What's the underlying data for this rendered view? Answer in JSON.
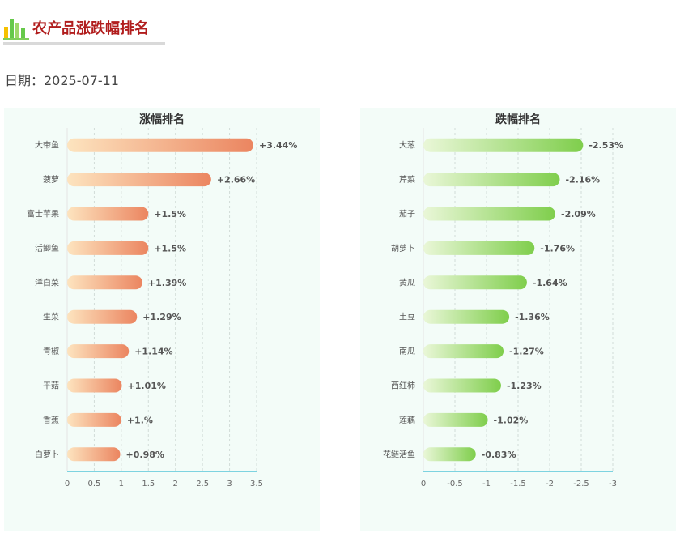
{
  "page": {
    "title": "农产品涨跌幅排名",
    "date_text": "日期：2025-07-11",
    "colors": {
      "title": "#b11d1d",
      "rise_start": "#fde4bf",
      "rise_end": "#eb8560",
      "fall_start": "#eaf7d8",
      "fall_end": "#7fce4c",
      "axis": "#7dd3e0"
    }
  },
  "chart_data": [
    {
      "type": "bar",
      "orientation": "horizontal",
      "title": "涨幅排名",
      "categories": [
        "大带鱼",
        "菠萝",
        "富士苹果",
        "活鲫鱼",
        "洋白菜",
        "生菜",
        "青椒",
        "平菇",
        "香蕉",
        "白萝卜"
      ],
      "values": [
        3.44,
        2.66,
        1.5,
        1.5,
        1.39,
        1.29,
        1.14,
        1.01,
        1.0,
        0.98
      ],
      "labels": [
        "+3.44%",
        "+2.66%",
        "+1.5%",
        "+1.5%",
        "+1.39%",
        "+1.29%",
        "+1.14%",
        "+1.01%",
        "+1.%",
        "+0.98%"
      ],
      "xticks": [
        "0",
        "0.5",
        "1",
        "1.5",
        "2",
        "2.5",
        "3",
        "3.5"
      ],
      "xlim": [
        0,
        3.5
      ],
      "grid": true
    },
    {
      "type": "bar",
      "orientation": "horizontal",
      "title": "跌幅排名",
      "categories": [
        "大葱",
        "芹菜",
        "茄子",
        "胡萝卜",
        "黄瓜",
        "土豆",
        "南瓜",
        "西红柿",
        "莲藕",
        "花鲢活鱼"
      ],
      "values": [
        -2.53,
        -2.16,
        -2.09,
        -1.76,
        -1.64,
        -1.36,
        -1.27,
        -1.23,
        -1.02,
        -0.83
      ],
      "labels": [
        "-2.53%",
        "-2.16%",
        "-2.09%",
        "-1.76%",
        "-1.64%",
        "-1.36%",
        "-1.27%",
        "-1.23%",
        "-1.02%",
        "-0.83%"
      ],
      "xticks": [
        "0",
        "-0.5",
        "-1",
        "-1.5",
        "-2",
        "-2.5",
        "-3"
      ],
      "xlim": [
        0,
        -3
      ],
      "grid": true
    }
  ]
}
